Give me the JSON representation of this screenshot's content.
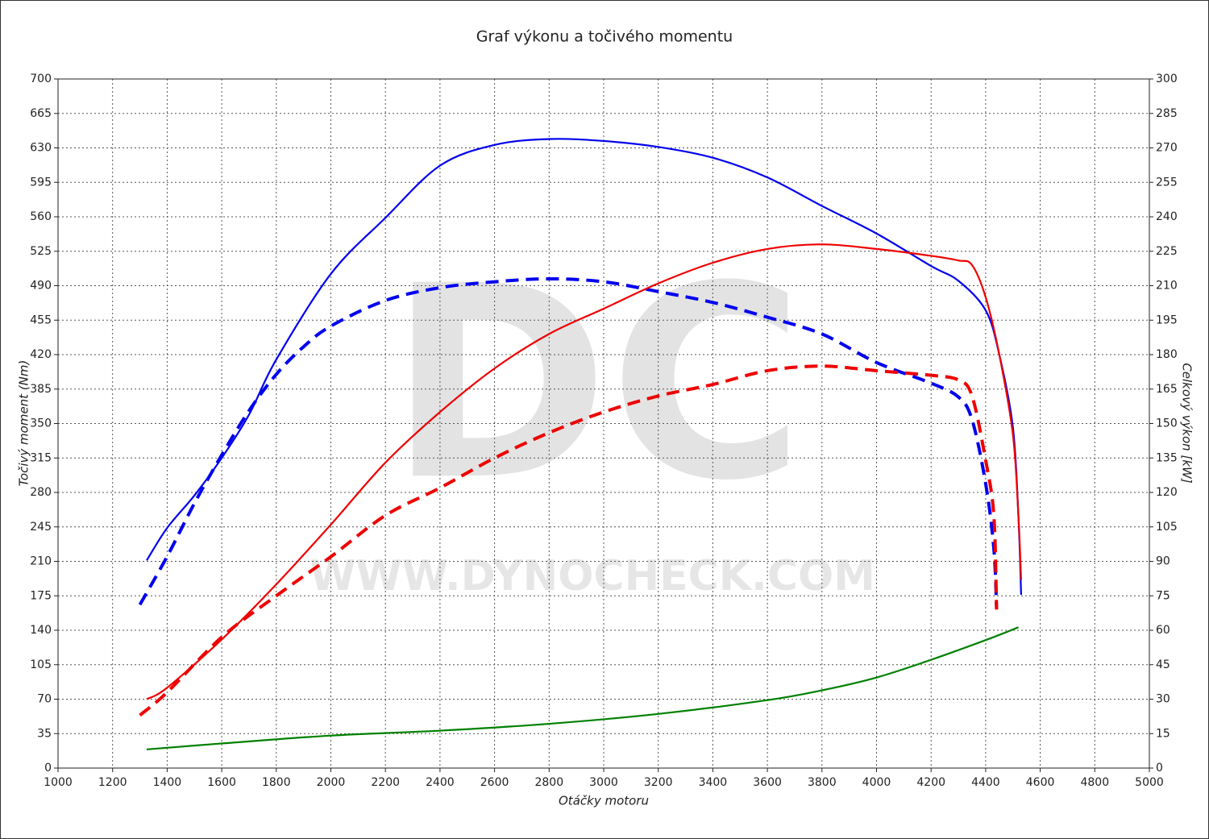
{
  "chart_data": {
    "type": "line",
    "title": "Graf výkonu a točivého momentu",
    "xlabel": "Otáčky motoru",
    "ylabel": "Točivý moment (Nm)",
    "y2label": "Celkový výkon [kW]",
    "watermark": "DC",
    "watermark_url": "WWW.DYNOCHECK.COM",
    "grid": true,
    "xlim": [
      1000,
      5000
    ],
    "xticks": [
      1000,
      1200,
      1400,
      1600,
      1800,
      2000,
      2200,
      2400,
      2600,
      2800,
      3000,
      3200,
      3400,
      3600,
      3800,
      4000,
      4200,
      4400,
      4600,
      4800,
      5000
    ],
    "ylim": [
      0,
      700
    ],
    "yticks": [
      0,
      35,
      70,
      105,
      140,
      175,
      210,
      245,
      280,
      315,
      350,
      385,
      420,
      455,
      490,
      525,
      560,
      595,
      630,
      665,
      700
    ],
    "y2lim": [
      0,
      300
    ],
    "y2ticks": [
      0,
      15,
      30,
      45,
      60,
      75,
      90,
      105,
      120,
      135,
      150,
      165,
      180,
      195,
      210,
      225,
      240,
      255,
      270,
      285,
      300
    ],
    "series": [
      {
        "color": "#0000ee",
        "dashed": false,
        "axis": "y",
        "x": [
          1325,
          1400,
          1500,
          1600,
          1700,
          1800,
          2000,
          2200,
          2400,
          2600,
          2800,
          3000,
          3200,
          3400,
          3600,
          3800,
          4000,
          4200,
          4300,
          4400,
          4450,
          4500,
          4520,
          4530
        ],
        "values": [
          211,
          244,
          277,
          315,
          359,
          415,
          502,
          559,
          612,
          633,
          639,
          637,
          631,
          620,
          600,
          571,
          543,
          510,
          495,
          465,
          420,
          346,
          256,
          176
        ]
      },
      {
        "color": "#0000ee",
        "dashed": true,
        "axis": "y",
        "x": [
          1300,
          1400,
          1500,
          1600,
          1700,
          1800,
          1900,
          2000,
          2200,
          2400,
          2600,
          2800,
          3000,
          3200,
          3400,
          3600,
          3800,
          4000,
          4200,
          4300,
          4350,
          4400,
          4430,
          4440
        ],
        "values": [
          166,
          215,
          269,
          318,
          363,
          400,
          428,
          449,
          475,
          488,
          494,
          497,
          494,
          484,
          473,
          458,
          441,
          412,
          391,
          377,
          354,
          289,
          223,
          162
        ]
      },
      {
        "color": "#ee0000",
        "dashed": false,
        "axis": "y2",
        "x": [
          1325,
          1400,
          1600,
          1800,
          2000,
          2200,
          2400,
          2600,
          2800,
          3000,
          3200,
          3400,
          3600,
          3800,
          4000,
          4200,
          4300,
          4350,
          4400,
          4450,
          4500,
          4520,
          4530
        ],
        "values": [
          30,
          35,
          56,
          80,
          106,
          133,
          155,
          174,
          189,
          200,
          211,
          220,
          226,
          228,
          226,
          223,
          221,
          219,
          205,
          180,
          145,
          110,
          82
        ]
      },
      {
        "color": "#ee0000",
        "dashed": true,
        "axis": "y2",
        "x": [
          1300,
          1400,
          1600,
          1800,
          2000,
          2200,
          2400,
          2600,
          2800,
          3000,
          3200,
          3400,
          3600,
          3800,
          4000,
          4200,
          4300,
          4350,
          4400,
          4430,
          4440
        ],
        "values": [
          23,
          33,
          57,
          75,
          92,
          110,
          122,
          135,
          146,
          155,
          162,
          167,
          173,
          175,
          173,
          171,
          169,
          162,
          134,
          110,
          69
        ]
      },
      {
        "color": "#008000",
        "dashed": false,
        "axis": "y",
        "x": [
          1325,
          1600,
          2000,
          2400,
          2800,
          3200,
          3600,
          3800,
          4000,
          4200,
          4400,
          4520
        ],
        "values": [
          19,
          25,
          33,
          38,
          45,
          55,
          69,
          79,
          92,
          110,
          130,
          143
        ]
      }
    ]
  }
}
